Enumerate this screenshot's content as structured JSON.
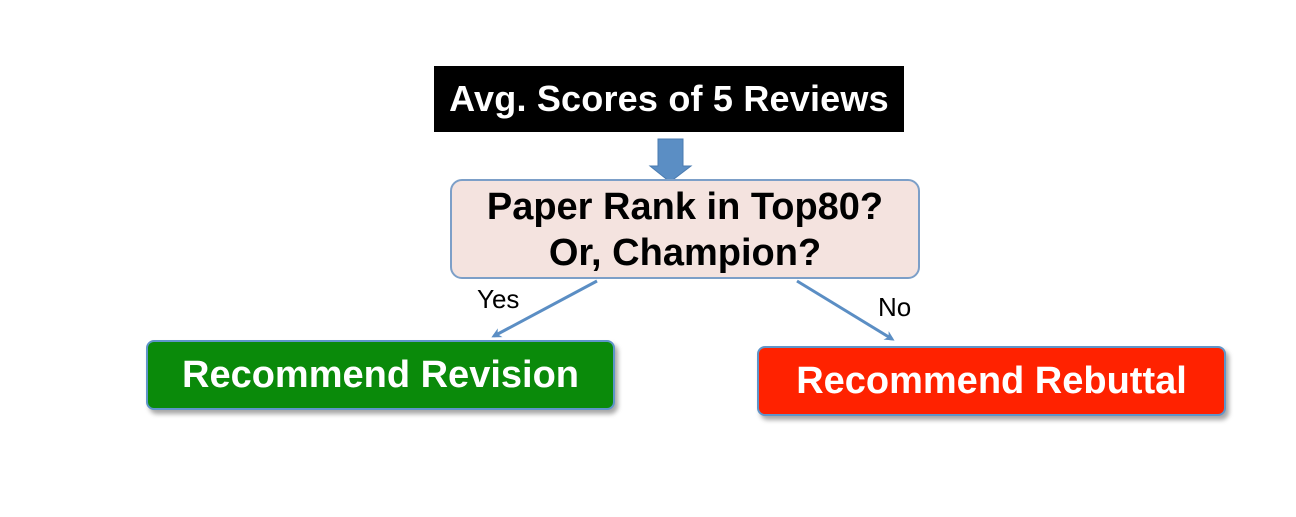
{
  "diagram": {
    "root": {
      "label": "Avg. Scores of 5 Reviews"
    },
    "decision": {
      "line1": "Paper Rank in Top80?",
      "line2": "Or, Champion?"
    },
    "branches": {
      "yes": {
        "label": "Yes",
        "target": "Recommend Revision",
        "color": "#0a8a0a"
      },
      "no": {
        "label": "No",
        "target": "Recommend Rebuttal",
        "color": "#ff2200"
      }
    },
    "colors": {
      "root_fill": "#000000",
      "decision_fill": "#f4e3df",
      "decision_border": "#7c9fc8",
      "arrow": "#5b8ec4"
    }
  }
}
